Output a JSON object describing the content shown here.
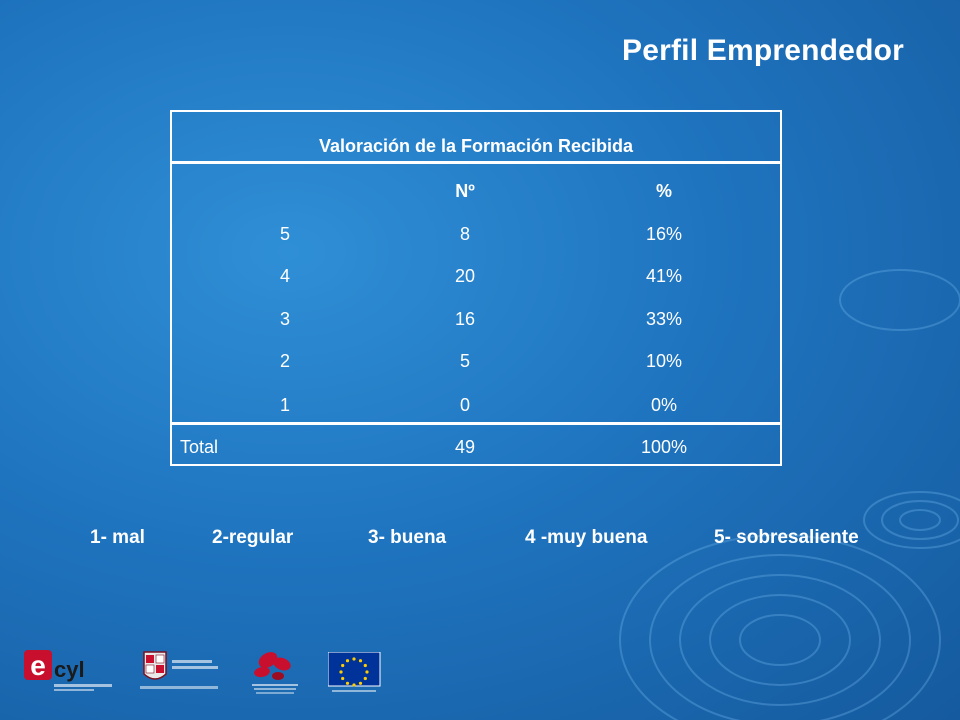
{
  "page": {
    "title": "Perfil Emprendedor"
  },
  "table": {
    "title": "Valoración de la Formación Recibida",
    "headers": [
      "",
      "Nº",
      "%"
    ],
    "rows": [
      {
        "label": "5",
        "n": "8",
        "pct": "16%"
      },
      {
        "label": "4",
        "n": "20",
        "pct": "41%"
      },
      {
        "label": "3",
        "n": "16",
        "pct": "33%"
      },
      {
        "label": "2",
        "n": "5",
        "pct": "10%"
      },
      {
        "label": "1",
        "n": "0",
        "pct": "0%"
      }
    ],
    "total": {
      "label": "Total",
      "n": "49",
      "pct": "100%"
    }
  },
  "legend": [
    "1- mal",
    "2-regular",
    "3- buena",
    "4 -muy buena",
    "5- sobresaliente"
  ],
  "logos": {
    "ecyl": {
      "word": "cyl",
      "letter": "e"
    }
  },
  "colors": {
    "background": "#1f74bf",
    "text": "#ffffff",
    "logo_red": "#c8102e",
    "eu_blue": "#003399",
    "eu_star": "#ffcc00"
  }
}
